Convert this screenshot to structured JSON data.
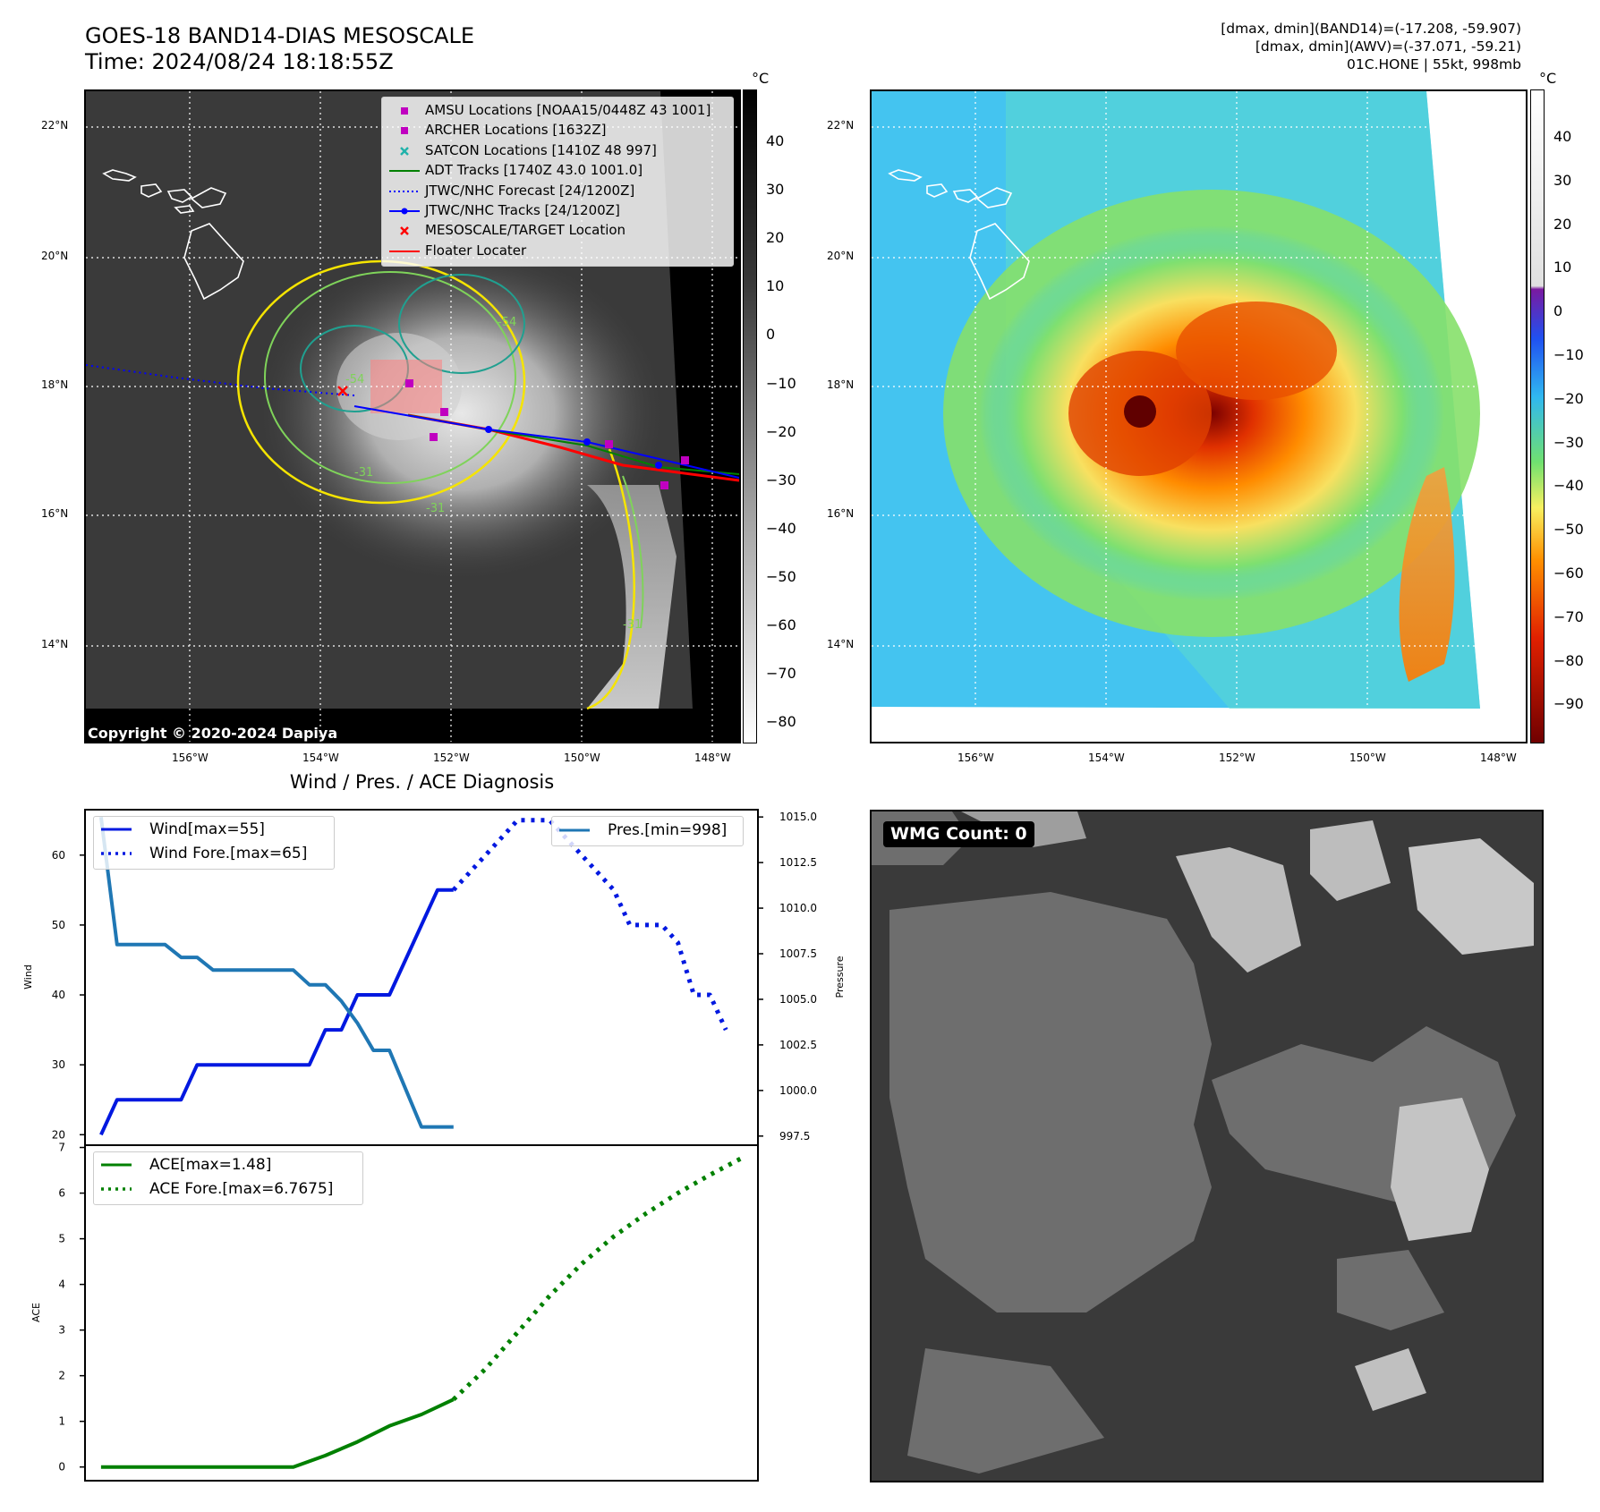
{
  "header": {
    "title_line1": "GOES-18 BAND14-DIAS MESOSCALE",
    "title_line2": "Time: 2024/08/24 18:18:55Z",
    "stats_line1": "[dmax, dmin](BAND14)=(-17.208, -59.907)",
    "stats_line2": "[dmax, dmin](AWV)=(-37.071, -59.21)",
    "stats_line3": "01C.HONE | 55kt, 998mb"
  },
  "map": {
    "lat_labels": [
      "22°N",
      "20°N",
      "18°N",
      "16°N",
      "14°N"
    ],
    "lon_labels": [
      "156°W",
      "154°W",
      "152°W",
      "150°W",
      "148°W"
    ],
    "copyright": "Copyright © 2020-2024 Dapiya",
    "contour_labels": [
      "-54",
      "-54",
      "-31",
      "-31",
      "-31"
    ],
    "legend": [
      {
        "label": "AMSU Locations [NOAA15/0448Z 43 1001]",
        "color": "#c000c0",
        "symbol": "square"
      },
      {
        "label": "ARCHER Locations [1632Z]",
        "color": "#c000c0",
        "symbol": "square"
      },
      {
        "label": "SATCON Locations [1410Z 48 997]",
        "color": "#20b2aa",
        "symbol": "x"
      },
      {
        "label": "ADT Tracks [1740Z 43.0 1001.0]",
        "color": "#008000",
        "symbol": "line"
      },
      {
        "label": "JTWC/NHC Forecast [24/1200Z]",
        "color": "#0000ff",
        "symbol": "dotted"
      },
      {
        "label": "JTWC/NHC Tracks [24/1200Z]",
        "color": "#0000ff",
        "symbol": "line-dot"
      },
      {
        "label": "MESOSCALE/TARGET Location",
        "color": "#ff0000",
        "symbol": "x"
      },
      {
        "label": "Floater Locater",
        "color": "#ff0000",
        "symbol": "line"
      }
    ]
  },
  "colorbar_gray": {
    "unit": "°C",
    "ticks": [
      "40",
      "30",
      "20",
      "10",
      "0",
      "−10",
      "−20",
      "−30",
      "−40",
      "−50",
      "−60",
      "−70",
      "−80"
    ]
  },
  "colorbar_color": {
    "unit": "°C",
    "ticks": [
      "40",
      "30",
      "20",
      "10",
      "0",
      "−10",
      "−20",
      "−30",
      "−40",
      "−50",
      "−60",
      "−70",
      "−80",
      "−90"
    ]
  },
  "wmg": {
    "badge": "WMG Count: 0"
  },
  "chart_data": [
    {
      "type": "line",
      "title": "Wind / Pres. / ACE Diagnosis",
      "ylabel": "Wind",
      "ylabel_right": "Pressure",
      "ylim": [
        18.5,
        66.5
      ],
      "ylim_right": [
        997,
        1015.4
      ],
      "yticks": [
        "60",
        "50",
        "40",
        "30",
        "20"
      ],
      "yticks_right": [
        "1015.0",
        "1012.5",
        "1010.0",
        "1007.5",
        "1005.0",
        "1002.5",
        "1000.0",
        "997.5"
      ],
      "xlim": [
        -1,
        41
      ],
      "series": [
        {
          "name": "Wind[max=55]",
          "axis": "left",
          "style": "solid",
          "color": "#0018e0",
          "x": [
            0,
            1,
            2,
            3,
            4,
            5,
            6,
            7,
            8,
            9,
            10,
            11,
            12,
            13,
            14,
            15,
            16,
            17,
            18,
            19,
            20,
            21,
            22
          ],
          "values": [
            20,
            25,
            25,
            25,
            25,
            25,
            30,
            30,
            30,
            30,
            30,
            30,
            30,
            30,
            35,
            35,
            40,
            40,
            40,
            45,
            50,
            55,
            55
          ]
        },
        {
          "name": "Wind Fore.[max=65]",
          "axis": "left",
          "style": "dotted",
          "color": "#0018e0",
          "x": [
            22,
            23,
            24,
            25,
            26,
            27,
            28,
            29,
            30,
            31,
            32,
            33,
            34,
            35,
            36,
            37,
            38,
            39
          ],
          "values": [
            55,
            57.5,
            60,
            62.5,
            65,
            65,
            65,
            62.5,
            60,
            57.5,
            55,
            50,
            50,
            50,
            47.5,
            40,
            40,
            35
          ]
        },
        {
          "name": "Pres.[min=998]",
          "axis": "right",
          "style": "solid",
          "color": "#1f77b4",
          "x": [
            0,
            1,
            2,
            3,
            4,
            5,
            6,
            7,
            8,
            9,
            10,
            11,
            12,
            13,
            14,
            15,
            16,
            17,
            18,
            19,
            20,
            21,
            22
          ],
          "values": [
            1015,
            1008,
            1008,
            1008,
            1008,
            1007.3,
            1007.3,
            1006.6,
            1006.6,
            1006.6,
            1006.6,
            1006.6,
            1006.6,
            1005.8,
            1005.8,
            1004.9,
            1003.7,
            1002.2,
            1002.2,
            1000.1,
            998,
            998,
            998
          ]
        }
      ]
    },
    {
      "type": "line",
      "ylabel": "ACE",
      "ylim": [
        -0.3,
        7.05
      ],
      "yticks": [
        "7",
        "6",
        "5",
        "4",
        "3",
        "2",
        "1",
        "0"
      ],
      "xlim": [
        -1,
        41
      ],
      "series": [
        {
          "name": "ACE[max=1.48]",
          "style": "solid",
          "color": "#008000",
          "x": [
            0,
            2,
            4,
            6,
            8,
            10,
            12,
            14,
            16,
            18,
            20,
            22
          ],
          "values": [
            0,
            0,
            0,
            0,
            0,
            0,
            0,
            0.25,
            0.55,
            0.9,
            1.15,
            1.48
          ]
        },
        {
          "name": "ACE Fore.[max=6.7675]",
          "style": "dotted",
          "color": "#008000",
          "x": [
            22,
            24,
            26,
            28,
            30,
            32,
            34,
            36,
            38,
            40
          ],
          "values": [
            1.48,
            2.15,
            2.95,
            3.75,
            4.45,
            5.05,
            5.55,
            6.0,
            6.4,
            6.77
          ]
        }
      ]
    }
  ]
}
